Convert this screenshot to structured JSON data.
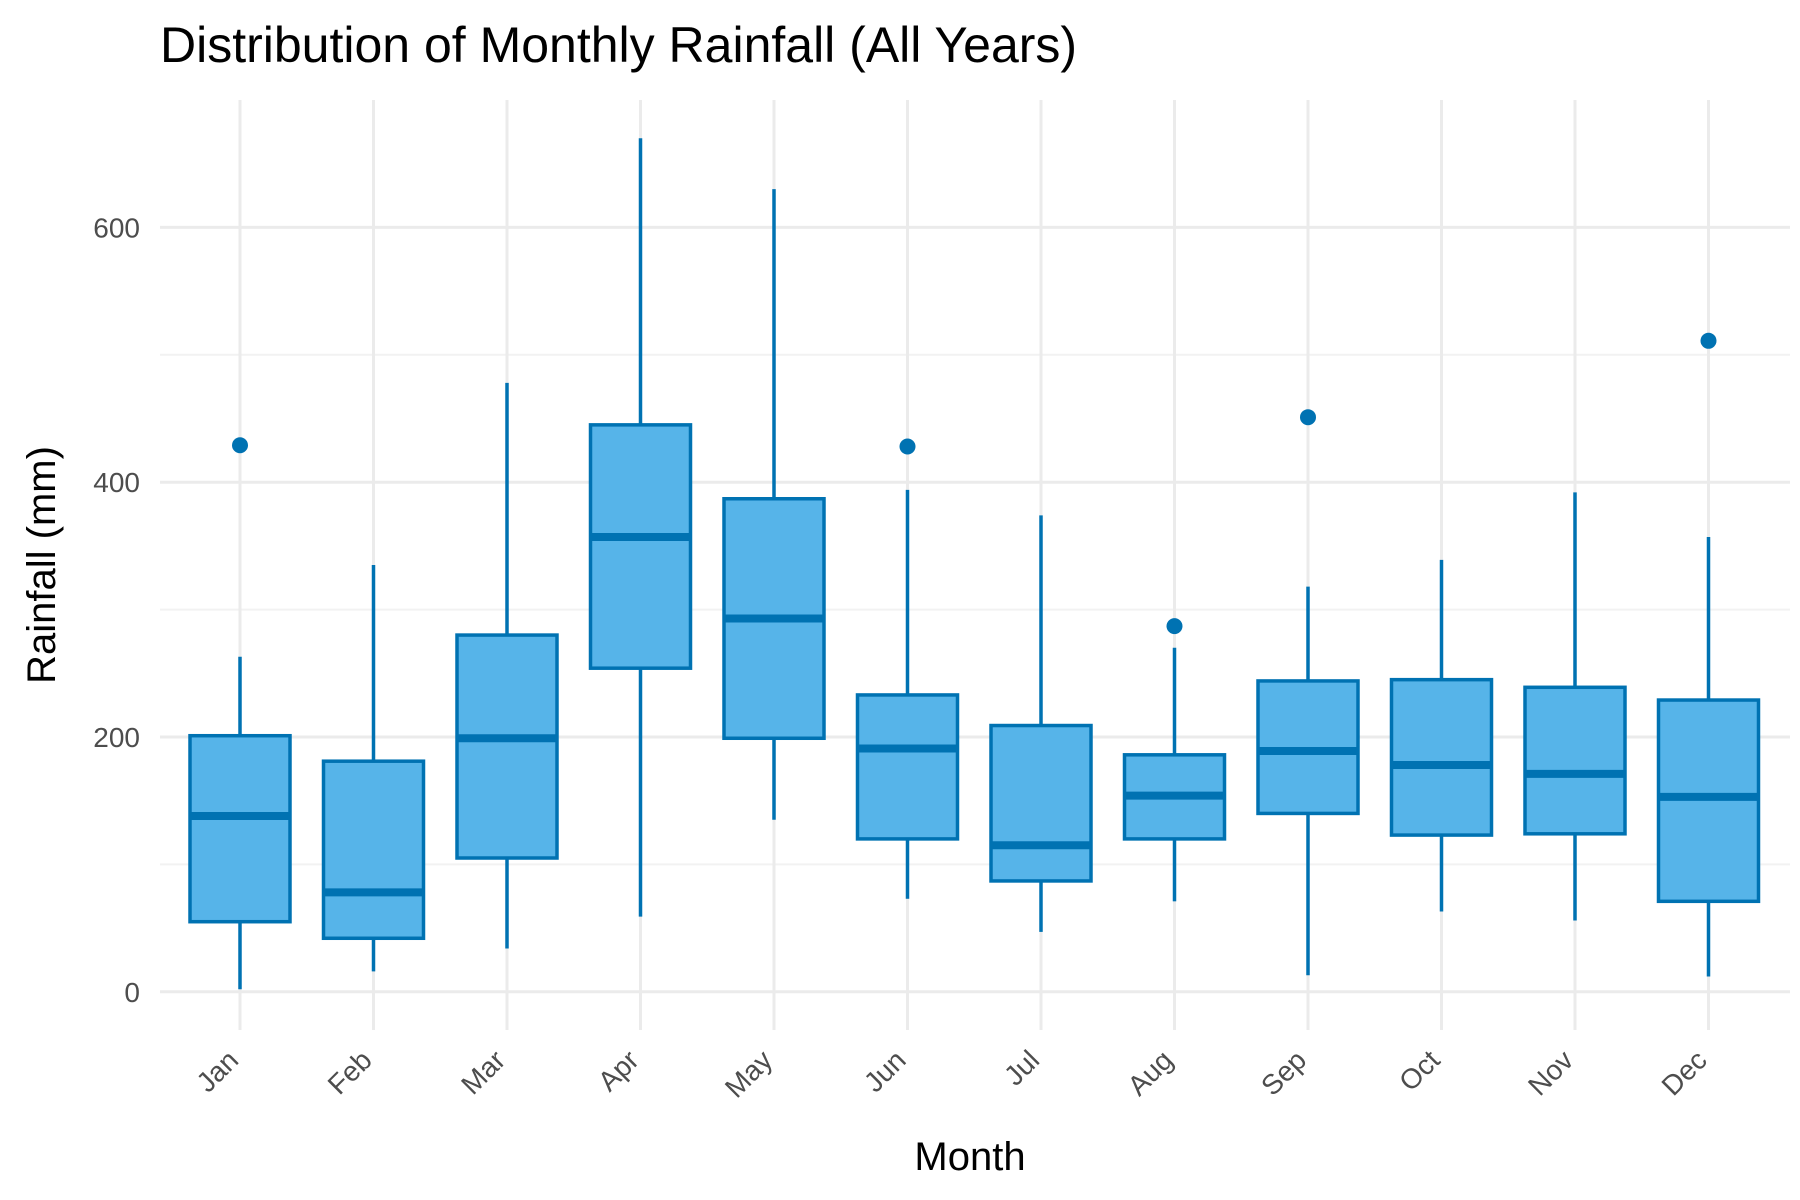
{
  "chart_data": {
    "type": "boxplot",
    "title": "Distribution of Monthly Rainfall (All Years)",
    "xlabel": "Month",
    "ylabel": "Rainfall (mm)",
    "ylim": [
      -30,
      700
    ],
    "yticks": [
      0,
      200,
      400,
      600
    ],
    "grid": true,
    "legend": "none",
    "colors": {
      "fill": "#56b4e9",
      "stroke": "#0072b2",
      "grid": "#ebebeb"
    },
    "categories": [
      "Jan",
      "Feb",
      "Mar",
      "Apr",
      "May",
      "Jun",
      "Jul",
      "Aug",
      "Sep",
      "Oct",
      "Nov",
      "Dec"
    ],
    "boxes": [
      {
        "month": "Jan",
        "whisker_low": 2,
        "q1": 55,
        "median": 138,
        "q3": 201,
        "whisker_high": 263,
        "outliers": [
          429
        ]
      },
      {
        "month": "Feb",
        "whisker_low": 16,
        "q1": 42,
        "median": 78,
        "q3": 181,
        "whisker_high": 335,
        "outliers": []
      },
      {
        "month": "Mar",
        "whisker_low": 34,
        "q1": 105,
        "median": 199,
        "q3": 280,
        "whisker_high": 478,
        "outliers": []
      },
      {
        "month": "Apr",
        "whisker_low": 59,
        "q1": 254,
        "median": 357,
        "q3": 445,
        "whisker_high": 670,
        "outliers": []
      },
      {
        "month": "May",
        "whisker_low": 135,
        "q1": 199,
        "median": 293,
        "q3": 387,
        "whisker_high": 630,
        "outliers": []
      },
      {
        "month": "Jun",
        "whisker_low": 73,
        "q1": 120,
        "median": 191,
        "q3": 233,
        "whisker_high": 394,
        "outliers": [
          428
        ]
      },
      {
        "month": "Jul",
        "whisker_low": 47,
        "q1": 87,
        "median": 115,
        "q3": 209,
        "whisker_high": 374,
        "outliers": []
      },
      {
        "month": "Aug",
        "whisker_low": 71,
        "q1": 120,
        "median": 154,
        "q3": 186,
        "whisker_high": 270,
        "outliers": [
          287
        ]
      },
      {
        "month": "Sep",
        "whisker_low": 13,
        "q1": 140,
        "median": 189,
        "q3": 244,
        "whisker_high": 318,
        "outliers": [
          451
        ]
      },
      {
        "month": "Oct",
        "whisker_low": 63,
        "q1": 123,
        "median": 178,
        "q3": 245,
        "whisker_high": 339,
        "outliers": []
      },
      {
        "month": "Nov",
        "whisker_low": 56,
        "q1": 124,
        "median": 171,
        "q3": 239,
        "whisker_high": 392,
        "outliers": []
      },
      {
        "month": "Dec",
        "whisker_low": 12,
        "q1": 71,
        "median": 153,
        "q3": 229,
        "whisker_high": 357,
        "outliers": [
          511
        ]
      }
    ]
  }
}
